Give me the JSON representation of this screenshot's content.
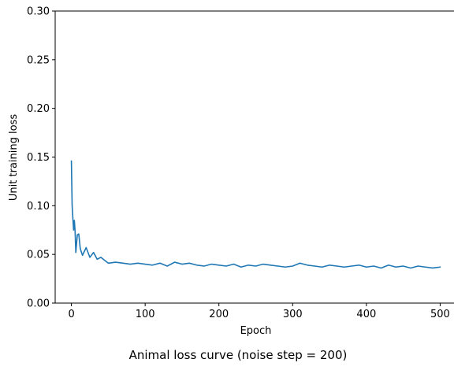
{
  "chart_data": {
    "type": "line",
    "title": "Animal loss curve (noise step = 200)",
    "xlabel": "Epoch",
    "ylabel": "Unit training loss",
    "xlim": [
      -22,
      522
    ],
    "ylim": [
      0,
      0.3
    ],
    "xticks": [
      0,
      100,
      200,
      300,
      400,
      500
    ],
    "xtick_labels": [
      "0",
      "100",
      "200",
      "300",
      "400",
      "500"
    ],
    "yticks": [
      0,
      0.05,
      0.1,
      0.15,
      0.2,
      0.25,
      0.3
    ],
    "ytick_labels": [
      "0.00",
      "0.05",
      "0.10",
      "0.15",
      "0.20",
      "0.25",
      "0.30"
    ],
    "grid": false,
    "series": [
      {
        "color": "#1f77b4",
        "x": [
          0,
          1,
          2,
          3,
          4,
          5,
          6,
          8,
          10,
          12,
          15,
          20,
          25,
          30,
          35,
          40,
          45,
          50,
          60,
          70,
          80,
          90,
          100,
          110,
          120,
          130,
          140,
          150,
          160,
          170,
          180,
          190,
          200,
          210,
          220,
          230,
          240,
          250,
          260,
          270,
          280,
          290,
          300,
          310,
          320,
          330,
          340,
          350,
          360,
          370,
          380,
          390,
          400,
          410,
          420,
          430,
          440,
          450,
          460,
          470,
          480,
          490,
          500
        ],
        "y": [
          0.146,
          0.1,
          0.087,
          0.075,
          0.085,
          0.074,
          0.052,
          0.07,
          0.071,
          0.056,
          0.049,
          0.057,
          0.047,
          0.052,
          0.045,
          0.047,
          0.044,
          0.041,
          0.042,
          0.041,
          0.04,
          0.041,
          0.04,
          0.039,
          0.041,
          0.038,
          0.042,
          0.04,
          0.041,
          0.039,
          0.038,
          0.04,
          0.039,
          0.038,
          0.04,
          0.037,
          0.039,
          0.038,
          0.04,
          0.039,
          0.038,
          0.037,
          0.038,
          0.041,
          0.039,
          0.038,
          0.037,
          0.039,
          0.038,
          0.037,
          0.038,
          0.039,
          0.037,
          0.038,
          0.036,
          0.039,
          0.037,
          0.038,
          0.036,
          0.038,
          0.037,
          0.036,
          0.037
        ]
      }
    ]
  }
}
